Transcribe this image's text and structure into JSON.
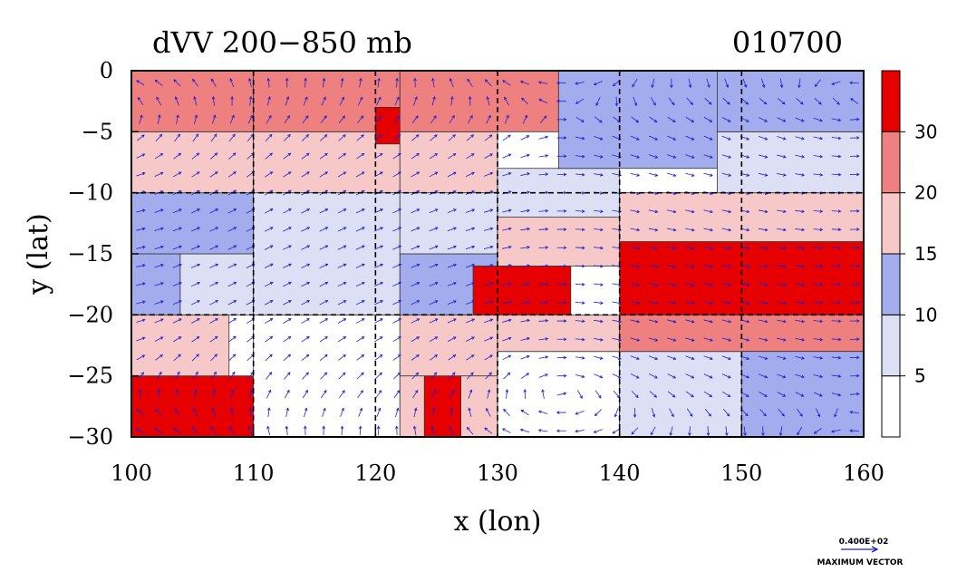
{
  "chart_data": {
    "type": "heatmap",
    "title_left": "dVV 200−850 mb",
    "title_right": "010700",
    "xlabel": "x (lon)",
    "ylabel": "y (lat)",
    "xlim": [
      100,
      160
    ],
    "ylim": [
      -30,
      0
    ],
    "x_ticks": [
      "100",
      "110",
      "120",
      "130",
      "140",
      "150",
      "160"
    ],
    "y_ticks": [
      "0",
      "−5",
      "−10",
      "−15",
      "−20",
      "−25",
      "−30"
    ],
    "grid": "dashed at 10° lon and 5° lat",
    "colorbar": {
      "levels": [
        "5",
        "10",
        "15",
        "20",
        "30"
      ],
      "colors": [
        "#ffffff",
        "#dde0f5",
        "#a3acec",
        "#f6c8c8",
        "#ee8080",
        "#e60000"
      ]
    },
    "shear_classes": [
      {
        "lon0": 100,
        "lon1": 110,
        "lat0": -30,
        "lat1": -25,
        "class": 5
      },
      {
        "lon0": 100,
        "lon1": 108,
        "lat0": -25,
        "lat1": -20,
        "class": 3
      },
      {
        "lon0": 100,
        "lon1": 104,
        "lat0": -20,
        "lat1": -15,
        "class": 2
      },
      {
        "lon0": 104,
        "lon1": 110,
        "lat0": -20,
        "lat1": -15,
        "class": 1
      },
      {
        "lon0": 100,
        "lon1": 110,
        "lat0": -15,
        "lat1": -10,
        "class": 2
      },
      {
        "lon0": 100,
        "lon1": 110,
        "lat0": -10,
        "lat1": -5,
        "class": 3
      },
      {
        "lon0": 100,
        "lon1": 110,
        "lat0": -5,
        "lat1": 0,
        "class": 4
      },
      {
        "lon0": 110,
        "lon1": 122,
        "lat0": -30,
        "lat1": -20,
        "class": 0
      },
      {
        "lon0": 110,
        "lon1": 122,
        "lat0": -20,
        "lat1": -10,
        "class": 1
      },
      {
        "lon0": 110,
        "lon1": 122,
        "lat0": -10,
        "lat1": -5,
        "class": 3
      },
      {
        "lon0": 110,
        "lon1": 122,
        "lat0": -5,
        "lat1": 0,
        "class": 4
      },
      {
        "lon0": 120,
        "lon1": 124,
        "lat0": -6,
        "lat1": -3,
        "class": 5
      },
      {
        "lon0": 122,
        "lon1": 130,
        "lat0": -30,
        "lat1": -25,
        "class": 3
      },
      {
        "lon0": 124,
        "lon1": 127,
        "lat0": -30,
        "lat1": -24,
        "class": 5
      },
      {
        "lon0": 122,
        "lon1": 130,
        "lat0": -25,
        "lat1": -20,
        "class": 3
      },
      {
        "lon0": 122,
        "lon1": 130,
        "lat0": -20,
        "lat1": -15,
        "class": 2
      },
      {
        "lon0": 122,
        "lon1": 130,
        "lat0": -15,
        "lat1": -10,
        "class": 1
      },
      {
        "lon0": 122,
        "lon1": 130,
        "lat0": -10,
        "lat1": -5,
        "class": 3
      },
      {
        "lon0": 122,
        "lon1": 135,
        "lat0": -5,
        "lat1": 0,
        "class": 4
      },
      {
        "lon0": 130,
        "lon1": 140,
        "lat0": -30,
        "lat1": -23,
        "class": 0
      },
      {
        "lon0": 130,
        "lon1": 140,
        "lat0": -23,
        "lat1": -20,
        "class": 3
      },
      {
        "lon0": 128,
        "lon1": 136,
        "lat0": -20,
        "lat1": -16,
        "class": 5
      },
      {
        "lon0": 130,
        "lon1": 140,
        "lat0": -16,
        "lat1": -12,
        "class": 3
      },
      {
        "lon0": 130,
        "lon1": 140,
        "lat0": -12,
        "lat1": -8,
        "class": 1
      },
      {
        "lon0": 135,
        "lon1": 148,
        "lat0": -8,
        "lat1": 0,
        "class": 2
      },
      {
        "lon0": 140,
        "lon1": 150,
        "lat0": -30,
        "lat1": -23,
        "class": 1
      },
      {
        "lon0": 140,
        "lon1": 160,
        "lat0": -23,
        "lat1": -20,
        "class": 4
      },
      {
        "lon0": 140,
        "lon1": 160,
        "lat0": -20,
        "lat1": -14,
        "class": 5
      },
      {
        "lon0": 140,
        "lon1": 160,
        "lat0": -14,
        "lat1": -10,
        "class": 3
      },
      {
        "lon0": 148,
        "lon1": 160,
        "lat0": -10,
        "lat1": -5,
        "class": 1
      },
      {
        "lon0": 148,
        "lon1": 160,
        "lat0": -5,
        "lat1": 0,
        "class": 2
      },
      {
        "lon0": 150,
        "lon1": 160,
        "lat0": -30,
        "lat1": -23,
        "class": 2
      }
    ],
    "max_vector_label": "0.400E+02",
    "max_vector_caption": "MAXIMUM VECTOR",
    "vector_color": "#2020d0"
  }
}
